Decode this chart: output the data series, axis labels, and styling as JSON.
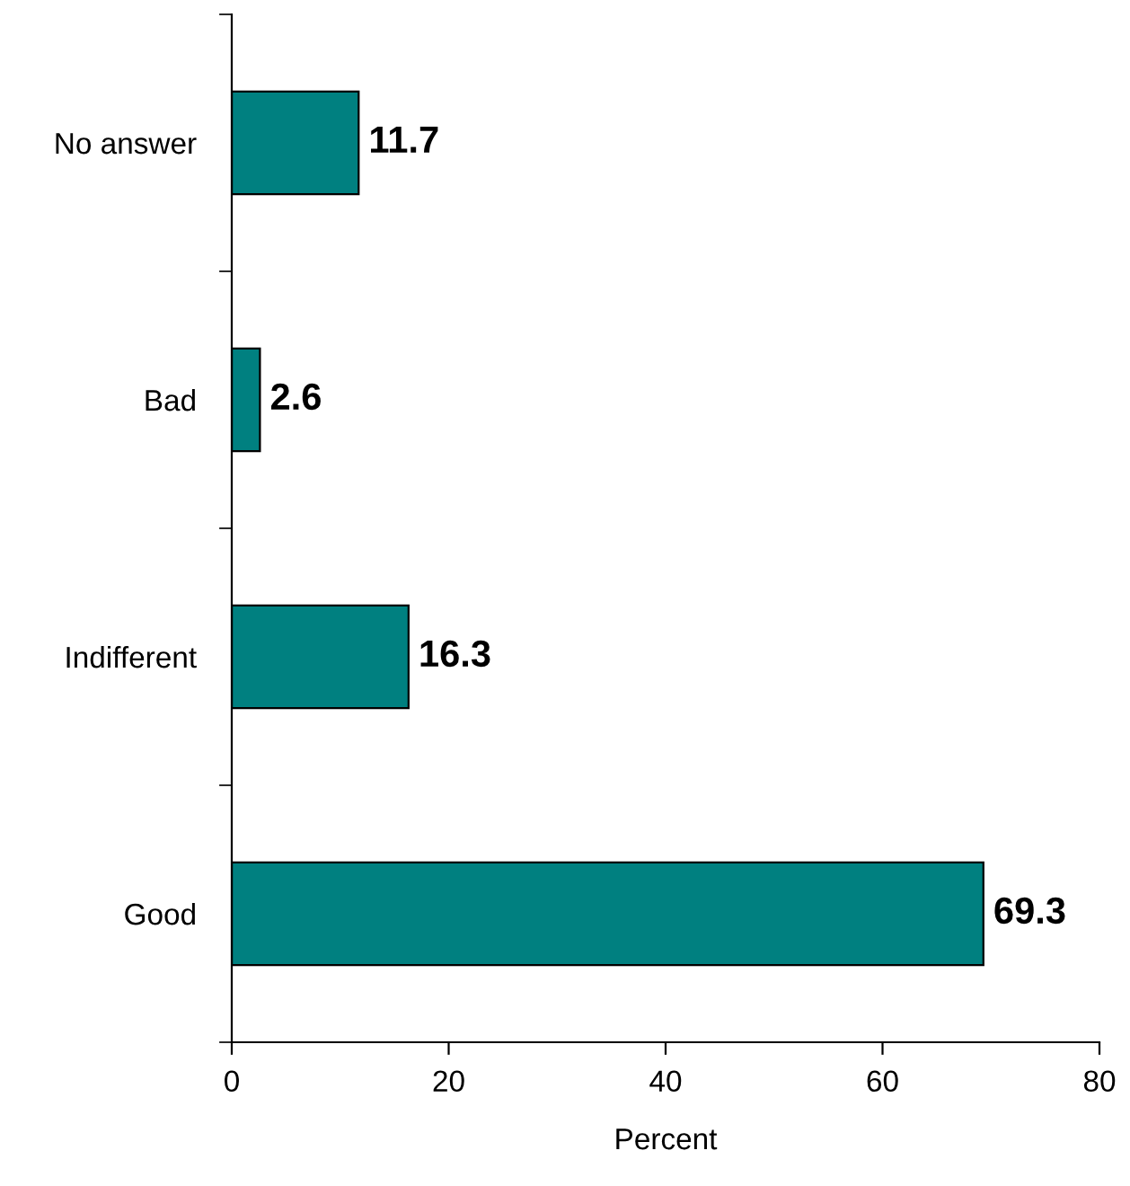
{
  "chart_data": {
    "type": "bar",
    "orientation": "horizontal",
    "xlabel": "Percent",
    "categories": [
      "No answer",
      "Bad",
      "Indifferent",
      "Good"
    ],
    "values": [
      11.7,
      2.6,
      16.3,
      69.3
    ],
    "color": "#008080",
    "xlim": [
      0,
      80
    ],
    "xticks": [
      0,
      20,
      40,
      60,
      80
    ],
    "grid": false,
    "data_labels": true
  }
}
